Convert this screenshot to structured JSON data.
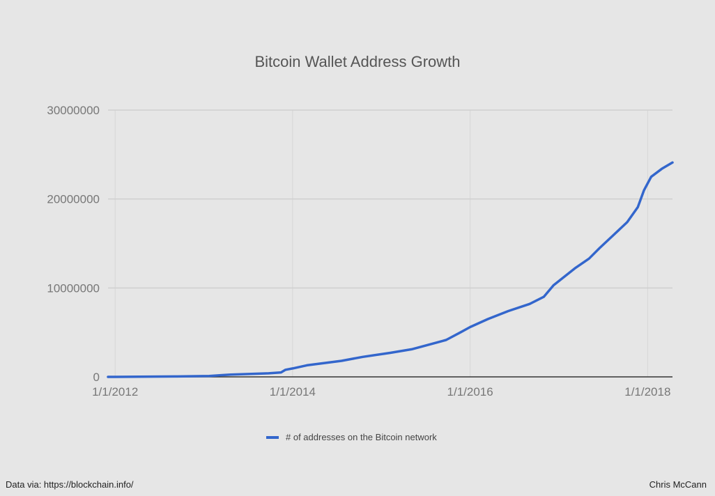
{
  "chart_data": {
    "type": "line",
    "title": "Bitcoin Wallet Address Growth",
    "xlabel": "",
    "ylabel": "",
    "xlim": [
      2011.92,
      2018.28
    ],
    "ylim": [
      0,
      30000000
    ],
    "grid": true,
    "legend_position": "bottom",
    "y_ticks": [
      0,
      10000000,
      20000000,
      30000000
    ],
    "y_tick_labels": [
      "0",
      "10000000",
      "20000000",
      "30000000"
    ],
    "x_ticks": [
      2012,
      2014,
      2016,
      2018
    ],
    "x_tick_labels": [
      "1/1/2012",
      "1/1/2014",
      "1/1/2016",
      "1/1/2018"
    ],
    "series": [
      {
        "name": "# of addresses on the Bitcoin network",
        "color": "#3366cc",
        "x": [
          2011.92,
          2012.0,
          2012.67,
          2013.06,
          2013.22,
          2013.3,
          2013.73,
          2013.87,
          2013.92,
          2014.0,
          2014.16,
          2014.39,
          2014.55,
          2014.79,
          2015.1,
          2015.34,
          2015.49,
          2015.73,
          2015.89,
          2016.0,
          2016.2,
          2016.43,
          2016.67,
          2016.83,
          2016.94,
          2017.18,
          2017.34,
          2017.46,
          2017.61,
          2017.77,
          2017.89,
          2017.96,
          2018.04,
          2018.16,
          2018.28
        ],
        "values": [
          0,
          0,
          50000,
          100000,
          200000,
          250000,
          400000,
          500000,
          800000,
          950000,
          1300000,
          1600000,
          1800000,
          2250000,
          2700000,
          3100000,
          3500000,
          4150000,
          5000000,
          5600000,
          6500000,
          7400000,
          8200000,
          9000000,
          10300000,
          12200000,
          13300000,
          14500000,
          15900000,
          17400000,
          19100000,
          21000000,
          22500000,
          23400000,
          24100000
        ]
      }
    ]
  },
  "footer": {
    "source": "Data via: https://blockchain.info/",
    "author": "Chris McCann"
  }
}
